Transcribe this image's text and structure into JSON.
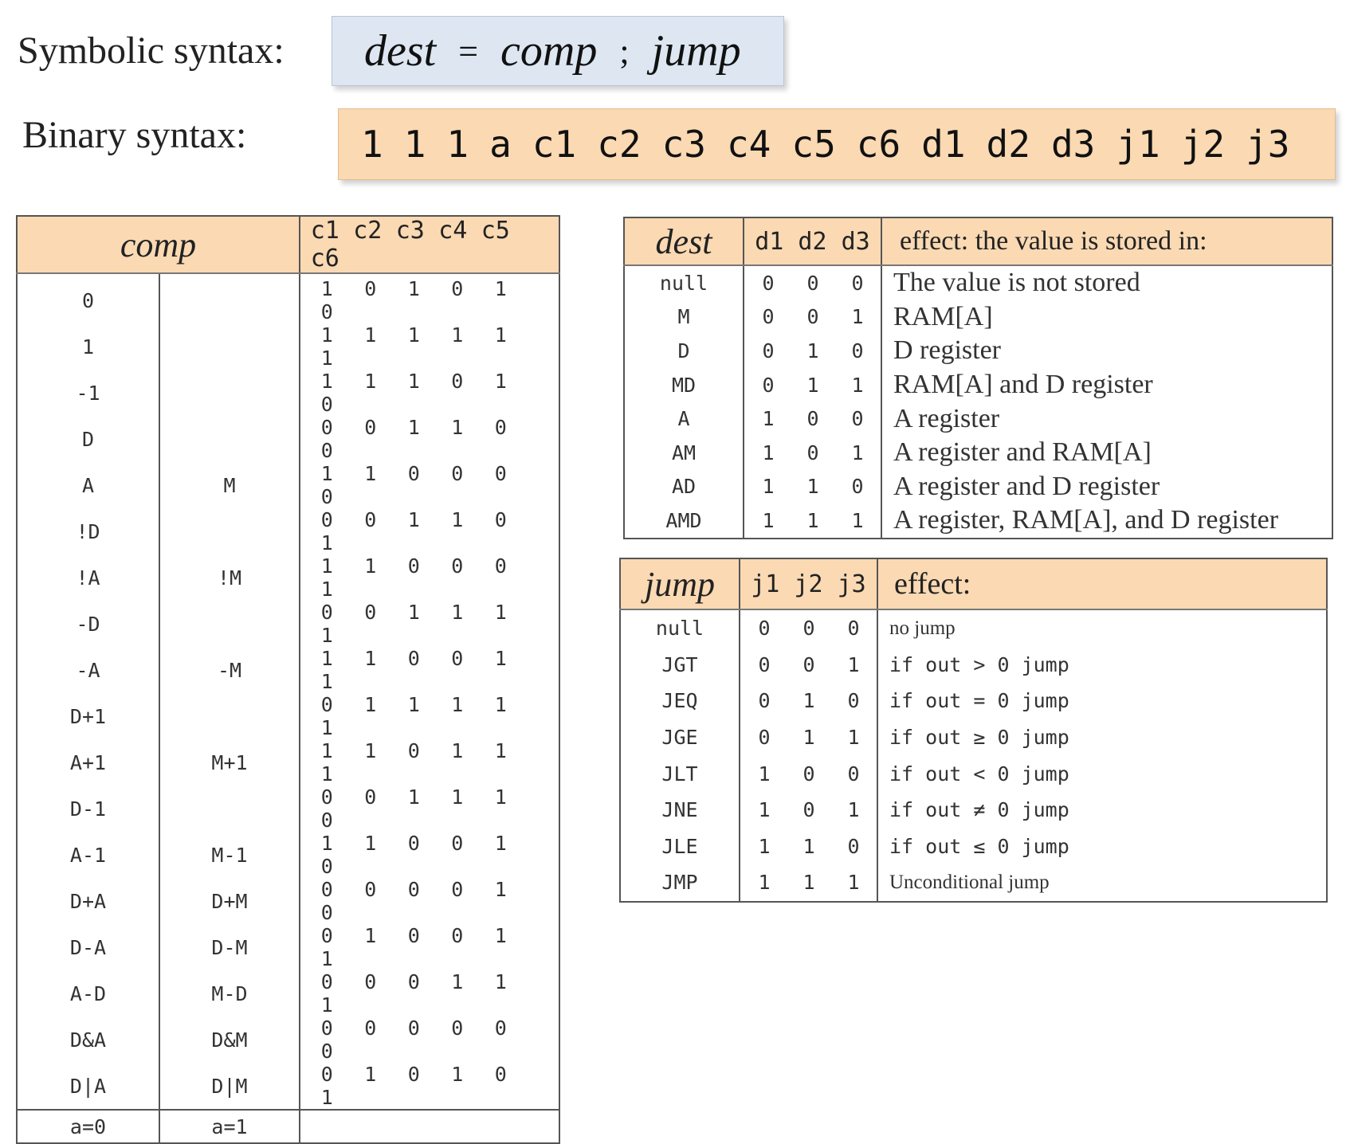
{
  "symbolic": {
    "label": "Symbolic syntax:",
    "dest": "dest",
    "eq": "=",
    "comp": "comp",
    "semi": ";",
    "jump": "jump"
  },
  "binary": {
    "label": "Binary syntax:",
    "bits": [
      "1",
      "1",
      "1",
      "a",
      "c1",
      "c2",
      "c3",
      "c4",
      "c5",
      "c6",
      "d1",
      "d2",
      "d3",
      "j1",
      "j2",
      "j3"
    ]
  },
  "comp_table": {
    "header": "comp",
    "bit_headers": [
      "c1",
      "c2",
      "c3",
      "c4",
      "c5",
      "c6"
    ],
    "rows": [
      {
        "a0": "0",
        "a1": "",
        "bits": [
          "1",
          "0",
          "1",
          "0",
          "1",
          "0"
        ]
      },
      {
        "a0": "1",
        "a1": "",
        "bits": [
          "1",
          "1",
          "1",
          "1",
          "1",
          "1"
        ]
      },
      {
        "a0": "-1",
        "a1": "",
        "bits": [
          "1",
          "1",
          "1",
          "0",
          "1",
          "0"
        ]
      },
      {
        "a0": "D",
        "a1": "",
        "bits": [
          "0",
          "0",
          "1",
          "1",
          "0",
          "0"
        ]
      },
      {
        "a0": "A",
        "a1": "M",
        "bits": [
          "1",
          "1",
          "0",
          "0",
          "0",
          "0"
        ]
      },
      {
        "a0": "!D",
        "a1": "",
        "bits": [
          "0",
          "0",
          "1",
          "1",
          "0",
          "1"
        ]
      },
      {
        "a0": "!A",
        "a1": "!M",
        "bits": [
          "1",
          "1",
          "0",
          "0",
          "0",
          "1"
        ]
      },
      {
        "a0": "-D",
        "a1": "",
        "bits": [
          "0",
          "0",
          "1",
          "1",
          "1",
          "1"
        ]
      },
      {
        "a0": "-A",
        "a1": "-M",
        "bits": [
          "1",
          "1",
          "0",
          "0",
          "1",
          "1"
        ]
      },
      {
        "a0": "D+1",
        "a1": "",
        "bits": [
          "0",
          "1",
          "1",
          "1",
          "1",
          "1"
        ]
      },
      {
        "a0": "A+1",
        "a1": "M+1",
        "bits": [
          "1",
          "1",
          "0",
          "1",
          "1",
          "1"
        ]
      },
      {
        "a0": "D-1",
        "a1": "",
        "bits": [
          "0",
          "0",
          "1",
          "1",
          "1",
          "0"
        ]
      },
      {
        "a0": "A-1",
        "a1": "M-1",
        "bits": [
          "1",
          "1",
          "0",
          "0",
          "1",
          "0"
        ]
      },
      {
        "a0": "D+A",
        "a1": "D+M",
        "bits": [
          "0",
          "0",
          "0",
          "0",
          "1",
          "0"
        ]
      },
      {
        "a0": "D-A",
        "a1": "D-M",
        "bits": [
          "0",
          "1",
          "0",
          "0",
          "1",
          "1"
        ]
      },
      {
        "a0": "A-D",
        "a1": "M-D",
        "bits": [
          "0",
          "0",
          "0",
          "1",
          "1",
          "1"
        ]
      },
      {
        "a0": "D&A",
        "a1": "D&M",
        "bits": [
          "0",
          "0",
          "0",
          "0",
          "0",
          "0"
        ]
      },
      {
        "a0": "D|A",
        "a1": "D|M",
        "bits": [
          "0",
          "1",
          "0",
          "1",
          "0",
          "1"
        ]
      }
    ],
    "footer_a0": "a=0",
    "footer_a1": "a=1"
  },
  "dest_table": {
    "header": "dest",
    "bit_headers": "d1 d2 d3",
    "effect_header": "effect: the value is stored in:",
    "rows": [
      {
        "name": "null",
        "bits": [
          "0",
          "0",
          "0"
        ],
        "effect": "The value is not stored"
      },
      {
        "name": "M",
        "bits": [
          "0",
          "0",
          "1"
        ],
        "effect": "RAM[A]"
      },
      {
        "name": "D",
        "bits": [
          "0",
          "1",
          "0"
        ],
        "effect": "D register"
      },
      {
        "name": "MD",
        "bits": [
          "0",
          "1",
          "1"
        ],
        "effect": "RAM[A] and D register"
      },
      {
        "name": "A",
        "bits": [
          "1",
          "0",
          "0"
        ],
        "effect": "A register"
      },
      {
        "name": "AM",
        "bits": [
          "1",
          "0",
          "1"
        ],
        "effect": "A register and RAM[A]"
      },
      {
        "name": "AD",
        "bits": [
          "1",
          "1",
          "0"
        ],
        "effect": "A register and D register"
      },
      {
        "name": "AMD",
        "bits": [
          "1",
          "1",
          "1"
        ],
        "effect": "A register, RAM[A], and D register"
      }
    ]
  },
  "jump_table": {
    "header": "jump",
    "bit_headers": "j1 j2 j3",
    "effect_header": "effect:",
    "rows": [
      {
        "name": "null",
        "bits": [
          "0",
          "0",
          "0"
        ],
        "effect": "no jump",
        "mono": false
      },
      {
        "name": "JGT",
        "bits": [
          "0",
          "0",
          "1"
        ],
        "effect": "if out > 0 jump",
        "mono": true
      },
      {
        "name": "JEQ",
        "bits": [
          "0",
          "1",
          "0"
        ],
        "effect": "if out = 0 jump",
        "mono": true
      },
      {
        "name": "JGE",
        "bits": [
          "0",
          "1",
          "1"
        ],
        "effect": "if out ≥ 0 jump",
        "mono": true
      },
      {
        "name": "JLT",
        "bits": [
          "1",
          "0",
          "0"
        ],
        "effect": "if out < 0 jump",
        "mono": true
      },
      {
        "name": "JNE",
        "bits": [
          "1",
          "0",
          "1"
        ],
        "effect": "if out ≠ 0 jump",
        "mono": true
      },
      {
        "name": "JLE",
        "bits": [
          "1",
          "1",
          "0"
        ],
        "effect": "if out ≤ 0 jump",
        "mono": true
      },
      {
        "name": "JMP",
        "bits": [
          "1",
          "1",
          "1"
        ],
        "effect": "Unconditional jump",
        "mono": false
      }
    ]
  }
}
